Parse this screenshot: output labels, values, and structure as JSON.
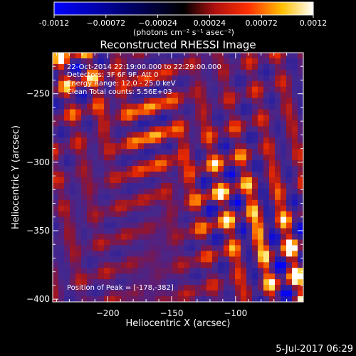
{
  "chart_data": {
    "type": "heatmap",
    "title": "Reconstructed RHESSI Image",
    "xlabel": "Heliocentric X (arcsec)",
    "ylabel": "Heliocentric Y (arcsec)",
    "xlim": [
      -243,
      -47
    ],
    "ylim": [
      -402,
      -220
    ],
    "x_ticks": [
      -200,
      -150,
      -100
    ],
    "y_ticks": [
      -250,
      -300,
      -350,
      -400
    ],
    "colormap": "blue-black-red-yellow-white",
    "grid": false,
    "colorbar": {
      "position": "top",
      "range": [
        -0.0012,
        0.0012
      ],
      "tick_values": [
        -0.0012,
        -0.00072,
        -0.00024,
        0.00024,
        0.00072,
        0.0012
      ],
      "tick_labels": [
        "-0.0012",
        "−0.00072",
        "−0.00024",
        "0.00024",
        "0.00072",
        "0.0012"
      ],
      "unit_label": "(photons cm⁻² s⁻¹ asec⁻²)"
    },
    "annotations": [
      "22-Oct-2014 22:19:00.000 to 22:29:00.000",
      "Detectors: 3F 6F 9F, Att 0",
      "Energy Range: 12.0 - 25.0 keV",
      "Clean    Total counts: 5.56E+03"
    ],
    "peak_label": "Position of Peak = [-178,-382]",
    "peak": [
      -178,
      -382
    ],
    "footer": "5-Jul-2017 06:29"
  }
}
